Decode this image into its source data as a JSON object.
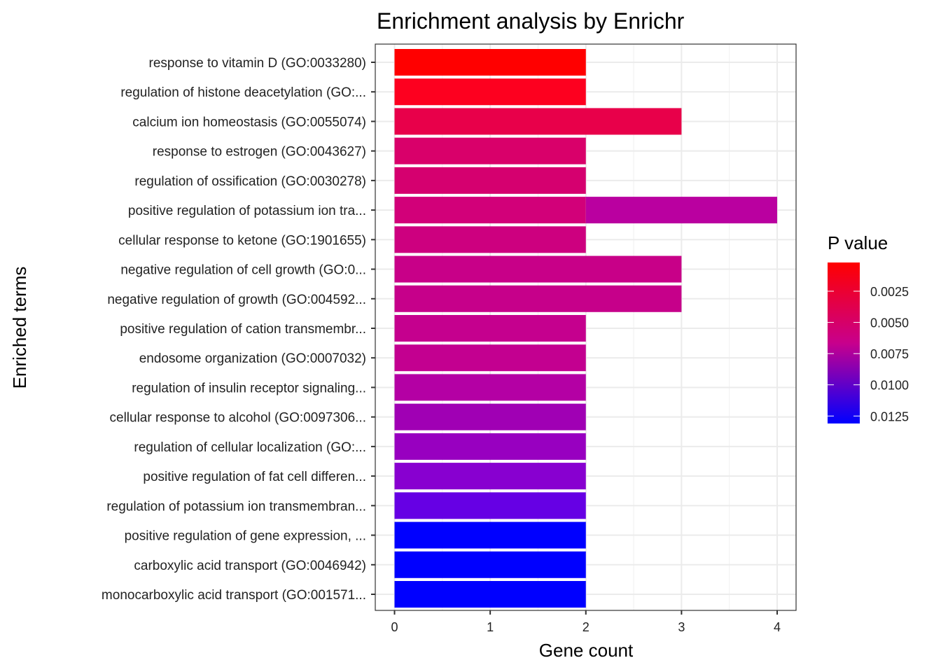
{
  "chart_data": {
    "type": "bar",
    "orientation": "horizontal",
    "title": "Enrichment analysis by Enrichr",
    "xlabel": "Gene count",
    "ylabel": "Enriched terms",
    "xlim": [
      0,
      4.2
    ],
    "x_ticks": [
      "0",
      "1",
      "2",
      "3",
      "4"
    ],
    "grid": true,
    "categories": [
      "response to vitamin D (GO:0033280)",
      "regulation of histone deacetylation (GO:...",
      "calcium ion homeostasis (GO:0055074)",
      "response to estrogen (GO:0043627)",
      "regulation of ossification (GO:0030278)",
      "positive regulation of potassium ion tra...",
      "cellular response to ketone (GO:1901655)",
      "negative regulation of cell growth (GO:0...",
      "negative regulation of growth (GO:004592...",
      "positive regulation of cation transmembr...",
      "endosome organization (GO:0007032)",
      "regulation of insulin receptor signaling...",
      "cellular response to alcohol (GO:0097306...",
      "regulation of cellular localization (GO:...",
      "positive regulation of fat cell differen...",
      "regulation of potassium ion transmembran...",
      "positive regulation of gene expression, ...",
      "carboxylic acid transport (GO:0046942)",
      "monocarboxylic acid transport (GO:001571..."
    ],
    "bars": [
      {
        "category_index": 0,
        "start": 0,
        "value": 2,
        "p_value": 0.0002,
        "color": "#ff0000"
      },
      {
        "category_index": 1,
        "start": 0,
        "value": 2,
        "p_value": 0.0008,
        "color": "#fd001f"
      },
      {
        "category_index": 2,
        "start": 0,
        "value": 3,
        "p_value": 0.0027,
        "color": "#e8004a"
      },
      {
        "category_index": 3,
        "start": 0,
        "value": 2,
        "p_value": 0.0043,
        "color": "#d9006a"
      },
      {
        "category_index": 4,
        "start": 0,
        "value": 2,
        "p_value": 0.0046,
        "color": "#d5006f"
      },
      {
        "category_index": 5,
        "start": 0,
        "value": 2,
        "p_value": 0.0049,
        "color": "#d20079"
      },
      {
        "category_index": 5,
        "start": 2,
        "value": 2,
        "p_value": 0.007,
        "color": "#ba00a0"
      },
      {
        "category_index": 6,
        "start": 0,
        "value": 2,
        "p_value": 0.0051,
        "color": "#cd007f"
      },
      {
        "category_index": 7,
        "start": 0,
        "value": 3,
        "p_value": 0.0055,
        "color": "#c80088"
      },
      {
        "category_index": 8,
        "start": 0,
        "value": 3,
        "p_value": 0.0055,
        "color": "#c6008a"
      },
      {
        "category_index": 9,
        "start": 0,
        "value": 2,
        "p_value": 0.0058,
        "color": "#c5008e"
      },
      {
        "category_index": 10,
        "start": 0,
        "value": 2,
        "p_value": 0.0059,
        "color": "#c30090"
      },
      {
        "category_index": 11,
        "start": 0,
        "value": 2,
        "p_value": 0.0072,
        "color": "#b400a4"
      },
      {
        "category_index": 12,
        "start": 0,
        "value": 2,
        "p_value": 0.0085,
        "color": "#a000b4"
      },
      {
        "category_index": 13,
        "start": 0,
        "value": 2,
        "p_value": 0.0091,
        "color": "#9800c0"
      },
      {
        "category_index": 14,
        "start": 0,
        "value": 2,
        "p_value": 0.01,
        "color": "#8800d0"
      },
      {
        "category_index": 15,
        "start": 0,
        "value": 2,
        "p_value": 0.0114,
        "color": "#6600e4"
      },
      {
        "category_index": 16,
        "start": 0,
        "value": 2,
        "p_value": 0.0131,
        "color": "#0000ff"
      },
      {
        "category_index": 17,
        "start": 0,
        "value": 2,
        "p_value": 0.0131,
        "color": "#0000ff"
      },
      {
        "category_index": 18,
        "start": 0,
        "value": 2,
        "p_value": 0.0131,
        "color": "#0000ff"
      }
    ],
    "legend": {
      "title": "P value",
      "position": "right",
      "type": "colorbar",
      "range": [
        0.0002,
        0.0131
      ],
      "ticks": [
        0.0025,
        0.005,
        0.0075,
        0.01,
        0.0125
      ],
      "tick_labels": [
        "0.0025",
        "0.0050",
        "0.0075",
        "0.0100",
        "0.0125"
      ],
      "low_color": "#ff0000",
      "high_color": "#0000ff"
    }
  }
}
